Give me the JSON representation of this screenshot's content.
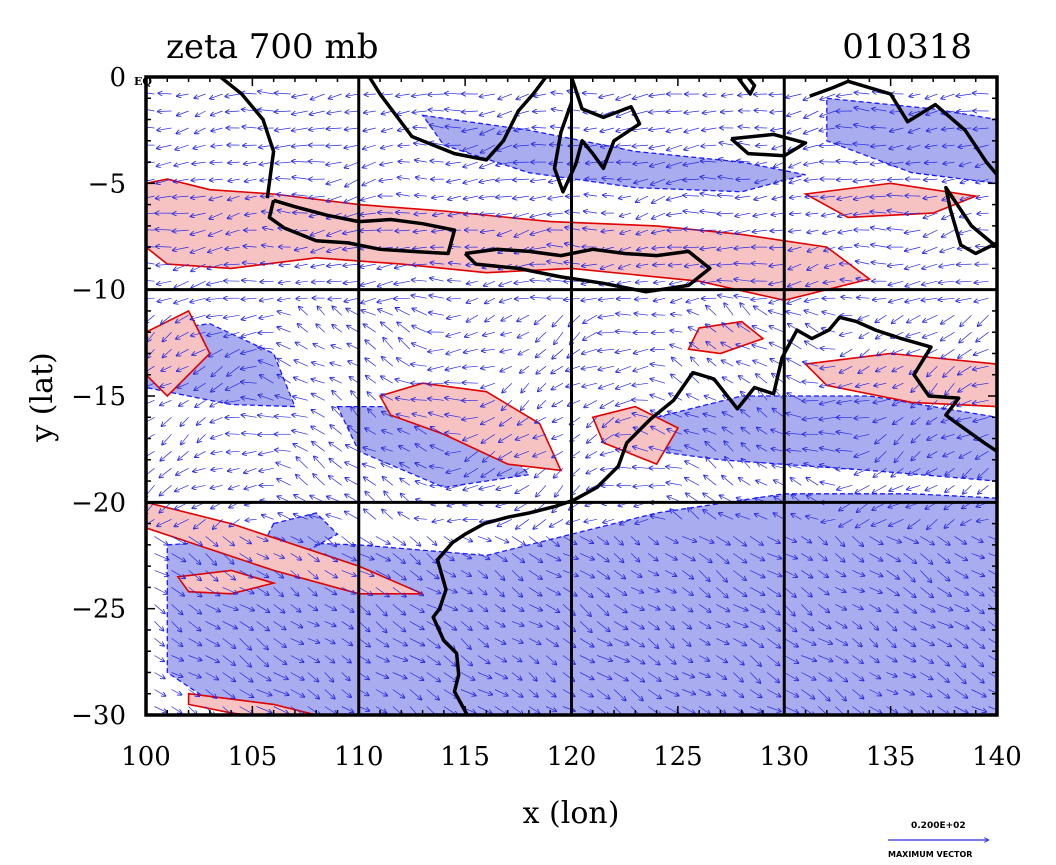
{
  "chart_data": {
    "type": "heatmap",
    "title": "zeta 700 mb",
    "date_label": "010318",
    "xlabel": "x (lon)",
    "ylabel": "y (lat)",
    "xlim": [
      100,
      140
    ],
    "ylim": [
      -30,
      0
    ],
    "x_ticks": [
      100,
      105,
      110,
      115,
      120,
      125,
      130,
      135,
      140
    ],
    "y_ticks": [
      0,
      -5,
      -10,
      -15,
      -20,
      -25,
      -30
    ],
    "x_tick_labels": [
      "100",
      "105",
      "110",
      "115",
      "120",
      "125",
      "130",
      "135",
      "140"
    ],
    "y_tick_labels": [
      "0",
      "−5",
      "−10",
      "−15",
      "−20",
      "−25",
      "−30"
    ],
    "y_top_suffix": "EQ",
    "grid_lon": [
      110,
      120,
      130
    ],
    "grid_lat": [
      -10,
      -20
    ],
    "positive_color": "#f6c2c2",
    "positive_line": "#e00000",
    "negative_color": "#a9acef",
    "negative_line": "#1a1aff",
    "vector_color": "#2a2ae0",
    "coast_color": "#000000",
    "reference_vector": {
      "value": "0.200E+02",
      "label": "MAXIMUM VECTOR"
    },
    "positive_regions": [
      {
        "lon": [
          100,
          101,
          103,
          106,
          110,
          114,
          119,
          124,
          128,
          132,
          134,
          130,
          126,
          120,
          116,
          112,
          108,
          104,
          101,
          100
        ],
        "lat": [
          -5,
          -4.8,
          -5.3,
          -5.5,
          -6,
          -6.3,
          -6.8,
          -7,
          -7.4,
          -8,
          -9.5,
          -10.5,
          -9.6,
          -9,
          -9.2,
          -8.8,
          -8.5,
          -9,
          -8.8,
          -8
        ]
      },
      {
        "lon": [
          100,
          104,
          110,
          113,
          110,
          106,
          103,
          100
        ],
        "lat": [
          -20,
          -21,
          -23,
          -24.3,
          -24.3,
          -23.2,
          -22.2,
          -21.2
        ]
      },
      {
        "lon": [
          102,
          106,
          108,
          107,
          104,
          102
        ],
        "lat": [
          -29,
          -29.5,
          -30,
          -30.3,
          -29.9,
          -29.5
        ]
      },
      {
        "lon": [
          111,
          113,
          116,
          118.5,
          119.5,
          117,
          114,
          111.5
        ],
        "lat": [
          -15,
          -14.4,
          -14.8,
          -16.3,
          -18.5,
          -18.2,
          -16.8,
          -15.9
        ]
      },
      {
        "lon": [
          100,
          102,
          103,
          101,
          100
        ],
        "lat": [
          -12,
          -11,
          -13,
          -15,
          -14
        ]
      },
      {
        "lon": [
          131,
          135,
          140,
          140,
          136,
          132
        ],
        "lat": [
          -13.5,
          -13,
          -13.5,
          -15.5,
          -15.3,
          -14.5
        ]
      },
      {
        "lon": [
          121,
          123,
          125,
          124,
          121.5
        ],
        "lat": [
          -16,
          -15.5,
          -16.5,
          -18.2,
          -17.2
        ]
      },
      {
        "lon": [
          131,
          135,
          139,
          137,
          133
        ],
        "lat": [
          -5.5,
          -5,
          -5.6,
          -6.4,
          -6.6
        ]
      },
      {
        "lon": [
          126,
          128,
          129,
          127,
          125.5
        ],
        "lat": [
          -11.8,
          -11.5,
          -12.3,
          -13,
          -12.8
        ]
      },
      {
        "lon": [
          101.5,
          104,
          106,
          104,
          102
        ],
        "lat": [
          -23.5,
          -23.2,
          -23.8,
          -24.3,
          -24.2
        ]
      }
    ],
    "negative_regions": [
      {
        "lon": [
          101,
          104,
          110,
          116,
          120,
          124,
          130,
          136,
          140,
          140,
          136,
          130,
          124,
          120,
          116,
          112,
          108,
          104,
          101
        ],
        "lat": [
          -22,
          -21.8,
          -22,
          -22.5,
          -21.5,
          -20.5,
          -19.6,
          -19.6,
          -19.8,
          -30,
          -30,
          -30,
          -30,
          -30,
          -30,
          -30,
          -30,
          -30,
          -28
        ]
      },
      {
        "lon": [
          113,
          118,
          123,
          128,
          131,
          128,
          123,
          118,
          114
        ],
        "lat": [
          -1.8,
          -2.5,
          -3.5,
          -4,
          -4.6,
          -5.4,
          -5.2,
          -4.5,
          -3.2
        ]
      },
      {
        "lon": [
          109,
          113,
          116,
          118,
          114,
          110
        ],
        "lat": [
          -15.5,
          -15.5,
          -16.5,
          -18.7,
          -19.3,
          -17.6
        ]
      },
      {
        "lon": [
          132,
          137,
          140,
          140,
          136,
          132
        ],
        "lat": [
          -1,
          -1.5,
          -2,
          -5,
          -4.5,
          -3
        ]
      },
      {
        "lon": [
          100,
          103,
          106,
          107,
          104,
          100
        ],
        "lat": [
          -12,
          -11.6,
          -13,
          -15.5,
          -15.4,
          -14.6
        ]
      },
      {
        "lon": [
          124,
          128,
          134,
          140,
          140,
          134,
          127,
          124
        ],
        "lat": [
          -16,
          -15,
          -15,
          -16,
          -19,
          -18.5,
          -18,
          -17.6
        ]
      },
      {
        "lon": [
          106,
          108,
          109,
          107,
          105.5
        ],
        "lat": [
          -21,
          -20.5,
          -21.5,
          -22.6,
          -22
        ]
      }
    ],
    "vector_field": {
      "lon_range": [
        100,
        140
      ],
      "lat_range": [
        -30,
        0
      ],
      "spacing_deg": 0.8
    },
    "coastlines": [
      {
        "name": "Sumatra",
        "lon": [
          103.5,
          104.5,
          105.5,
          106,
          105.7
        ],
        "lat": [
          0,
          -0.8,
          -2,
          -3.5,
          -5.7
        ]
      },
      {
        "name": "Borneo",
        "lon": [
          110.5,
          111,
          112.5,
          114.5,
          116,
          116.8,
          117.5,
          118.2,
          118.8
        ],
        "lat": [
          0,
          -0.8,
          -2.8,
          -3.6,
          -3.9,
          -3,
          -1.6,
          -0.8,
          0
        ]
      },
      {
        "name": "Java",
        "lon": [
          106,
          107,
          108.5,
          110,
          111.5,
          113,
          114.5,
          114.2,
          112.5,
          111,
          109.5,
          108,
          106.5,
          105.8,
          106
        ],
        "lat": [
          -5.8,
          -6.1,
          -6.5,
          -6.8,
          -6.7,
          -6.9,
          -7.2,
          -8.3,
          -8.2,
          -8.1,
          -7.8,
          -7.7,
          -7.1,
          -6.6,
          -5.8
        ]
      },
      {
        "name": "Lesser Sunda",
        "lon": [
          115,
          116.5,
          118,
          119.5,
          121,
          122.5,
          124,
          125.5,
          126.5,
          125.5,
          123.5,
          121.5,
          119.5,
          117.5,
          115.5,
          115
        ],
        "lat": [
          -8.3,
          -8.1,
          -8.2,
          -8.4,
          -8.1,
          -8.3,
          -8.4,
          -8.2,
          -9,
          -9.8,
          -10.1,
          -9.7,
          -9.4,
          -9.0,
          -8.8,
          -8.3
        ]
      },
      {
        "name": "Sulawesi",
        "lon": [
          120,
          120.5,
          121.5,
          122.8,
          123.2,
          122,
          121.5,
          121,
          120.5,
          120.2,
          119.6,
          119.2,
          119.5,
          120
        ],
        "lat": [
          0,
          -1.5,
          -1.9,
          -1.4,
          -2.2,
          -3.0,
          -4.3,
          -3.6,
          -3.0,
          -4.1,
          -5.4,
          -4.3,
          -2.6,
          -1.2
        ]
      },
      {
        "name": "Halmahera",
        "lon": [
          127.8,
          128.4,
          128.6,
          128.2
        ],
        "lat": [
          0,
          -0.8,
          -0.4,
          0.1
        ]
      },
      {
        "name": "Seram",
        "lon": [
          127.5,
          129.5,
          131,
          130,
          128.3,
          127.5
        ],
        "lat": [
          -2.9,
          -2.7,
          -3.1,
          -3.7,
          -3.6,
          -2.9
        ]
      },
      {
        "name": "New Guinea",
        "lon": [
          131.2,
          132.3,
          133,
          135,
          135.8,
          137.1,
          138.5,
          139.5,
          140
        ],
        "lat": [
          -0.9,
          -0.5,
          -0.2,
          -0.8,
          -2.1,
          -1.3,
          -2.5,
          -4.0,
          -4.6
        ]
      },
      {
        "name": "New Guinea south",
        "lon": [
          140,
          139,
          138.3,
          137.8,
          137.6,
          138.8,
          140
        ],
        "lat": [
          -7.8,
          -8.3,
          -7.9,
          -6.2,
          -5.2,
          -7.0,
          -8.0
        ]
      },
      {
        "name": "Australia",
        "lon": [
          140,
          139.4,
          138,
          137.6,
          138.2,
          136.8,
          136.1,
          136.9,
          135.5,
          134.3,
          133.4,
          132.6,
          132.1,
          131.3,
          130.6,
          129.9,
          129.5,
          128.6,
          127.8,
          126.7,
          125.7,
          124.8,
          123.7,
          122.6,
          122.2,
          121.2,
          120.1,
          119.2,
          118,
          117,
          115.9,
          115,
          114.4,
          113.7,
          114.1,
          113.8,
          113.5,
          114,
          114.6,
          114.7,
          114.5,
          115.1,
          115.5
        ],
        "lat": [
          -17.6,
          -17.2,
          -16.2,
          -15.9,
          -15.1,
          -15,
          -14,
          -12.7,
          -12.3,
          -11.9,
          -11.5,
          -11.3,
          -11.9,
          -12.3,
          -11.9,
          -13.2,
          -14.9,
          -14.6,
          -15.6,
          -14.2,
          -13.9,
          -15.2,
          -16.1,
          -17.2,
          -18.3,
          -19.3,
          -19.9,
          -20.2,
          -20.5,
          -20.7,
          -21.0,
          -21.5,
          -21.9,
          -22.7,
          -24.1,
          -25.0,
          -25.4,
          -26.5,
          -27.1,
          -28.1,
          -28.9,
          -30.0,
          -30.1
        ]
      }
    ]
  }
}
